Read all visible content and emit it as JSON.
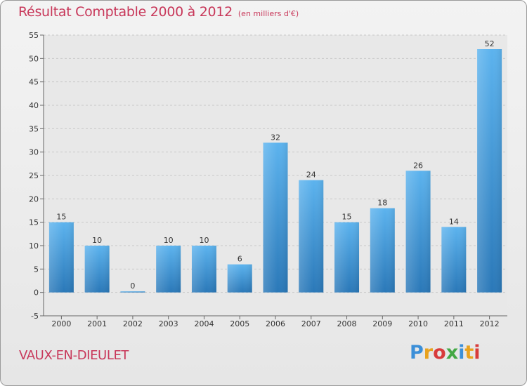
{
  "chart_data": {
    "type": "bar",
    "title": "Résultat Comptable 2000 à 2012",
    "subtitle": "(en milliers d'€)",
    "xlabel": "",
    "ylabel": "",
    "categories": [
      "2000",
      "2001",
      "2002",
      "2003",
      "2004",
      "2005",
      "2006",
      "2007",
      "2008",
      "2009",
      "2010",
      "2011",
      "2012"
    ],
    "values": [
      15,
      10,
      0,
      10,
      10,
      6,
      32,
      24,
      15,
      18,
      26,
      14,
      52
    ],
    "ylim": [
      -5,
      55
    ],
    "yticks": [
      -5,
      0,
      5,
      10,
      15,
      20,
      25,
      30,
      35,
      40,
      45,
      50,
      55
    ],
    "grid": true,
    "legend": "none",
    "bar_color": "#4a9fe0"
  },
  "footer": {
    "place": "VAUX-EN-DIEULET",
    "logo": "Proxiti"
  }
}
